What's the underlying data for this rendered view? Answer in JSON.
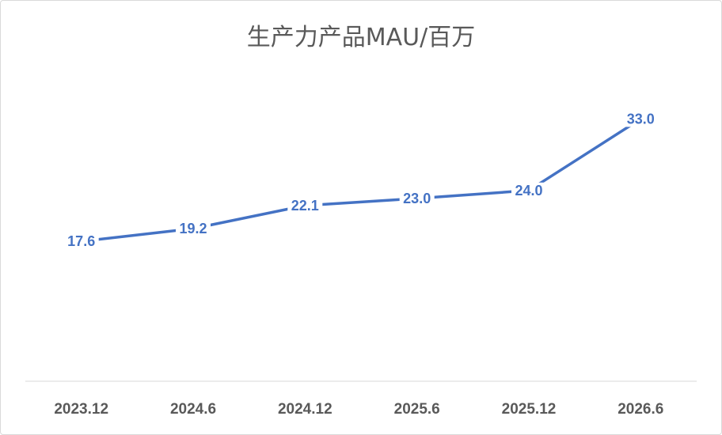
{
  "chart_data": {
    "type": "line",
    "title": "生产力产品MAU/百万",
    "categories": [
      "2023.12",
      "2024.6",
      "2024.12",
      "2025.6",
      "2025.12",
      "2026.6"
    ],
    "series": [
      {
        "values": [
          17.6,
          19.2,
          22.1,
          23.0,
          24.0,
          33.0
        ]
      }
    ],
    "data_labels": [
      "17.6",
      "19.2",
      "22.1",
      "23.0",
      "24.0",
      "33.0"
    ],
    "ylim": [
      0,
      40
    ],
    "grid": false,
    "legend": "none",
    "line_color": "#4472C4"
  }
}
